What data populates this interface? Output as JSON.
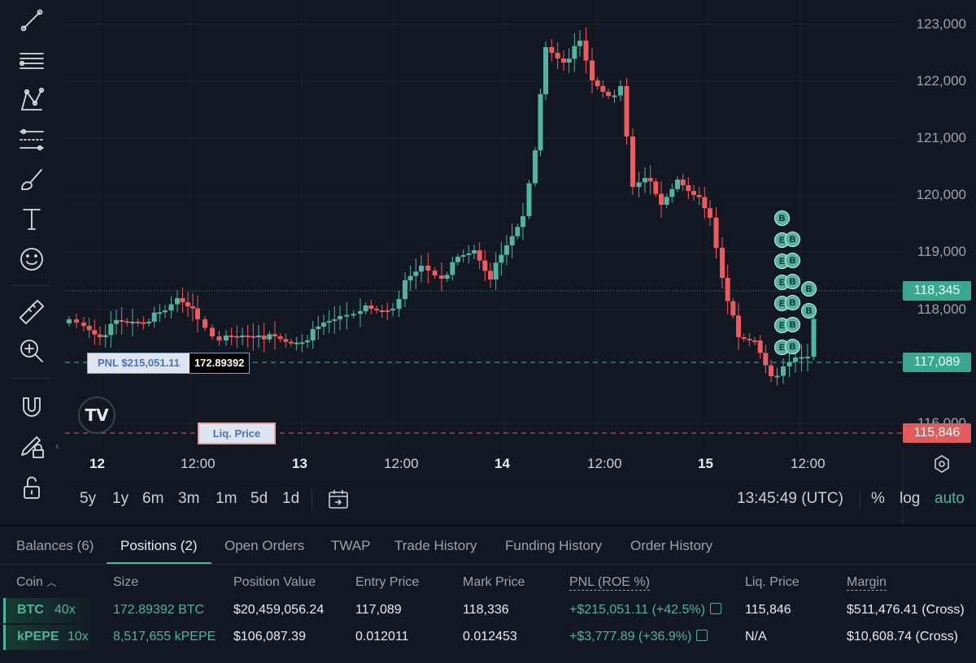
{
  "toolbar": {
    "tools": [
      "trend-line-icon",
      "horizontal-lines-icon",
      "pattern-icon",
      "fib-levels-icon",
      "brush-icon",
      "text-icon",
      "emoji-icon",
      "ruler-icon",
      "zoom-in-icon",
      "magnet-icon",
      "lock-drawing-icon",
      "unlock-icon"
    ]
  },
  "chart": {
    "price_axis": [
      "123,000",
      "122,000",
      "121,000",
      "120,000",
      "119,000",
      "118,000",
      "116,000"
    ],
    "current_price": "118,345",
    "entry_price_badge": "117,089",
    "liq_price_badge": "115,846",
    "time_axis": [
      {
        "label": "12",
        "bold": true
      },
      {
        "label": "12:00",
        "bold": false
      },
      {
        "label": "13",
        "bold": true
      },
      {
        "label": "12:00",
        "bold": false
      },
      {
        "label": "14",
        "bold": true
      },
      {
        "label": "12:00",
        "bold": false
      },
      {
        "label": "15",
        "bold": true
      },
      {
        "label": "12:00",
        "bold": false
      }
    ],
    "pnl_label": "PNL $215,051.11",
    "position_size_label": "172.89392",
    "liq_label": "Liq. Price",
    "markers": [
      "B",
      "E",
      "B",
      "E",
      "B",
      "E",
      "B",
      "E",
      "B",
      "B",
      "E",
      "B",
      "B",
      "E",
      "B"
    ],
    "colors": {
      "up": "#4fb4a0",
      "down": "#ee5b5c",
      "liq": "#e25c5c"
    }
  },
  "range_bar": {
    "ranges": [
      "5y",
      "1y",
      "6m",
      "3m",
      "1m",
      "5d",
      "1d"
    ],
    "clock": "13:45:49 (UTC)",
    "percent": "%",
    "log": "log",
    "auto": "auto"
  },
  "tabs": [
    "Balances (6)",
    "Positions (2)",
    "Open Orders",
    "TWAP",
    "Trade History",
    "Funding History",
    "Order History"
  ],
  "active_tab": "Positions (2)",
  "table": {
    "headers": [
      "Coin",
      "Size",
      "Position Value",
      "Entry Price",
      "Mark Price",
      "PNL (ROE %)",
      "Liq. Price",
      "Margin"
    ],
    "sort_indicator": "^",
    "rows": [
      {
        "coin": "BTC",
        "leverage": "40x",
        "size": "172.89392 BTC",
        "value": "$20,459,056.24",
        "entry": "117,089",
        "mark": "118,336",
        "pnl": "+$215,051.11 (+42.5%)",
        "liq": "115,846",
        "margin": "$511,476.41 (Cross)"
      },
      {
        "coin": "kPEPE",
        "leverage": "10x",
        "size": "8,517,655 kPEPE",
        "value": "$106,087.39",
        "entry": "0.012011",
        "mark": "0.012453",
        "pnl": "+$3,777.89 (+36.9%)",
        "liq": "N/A",
        "margin": "$10,608.74 (Cross)"
      }
    ]
  }
}
